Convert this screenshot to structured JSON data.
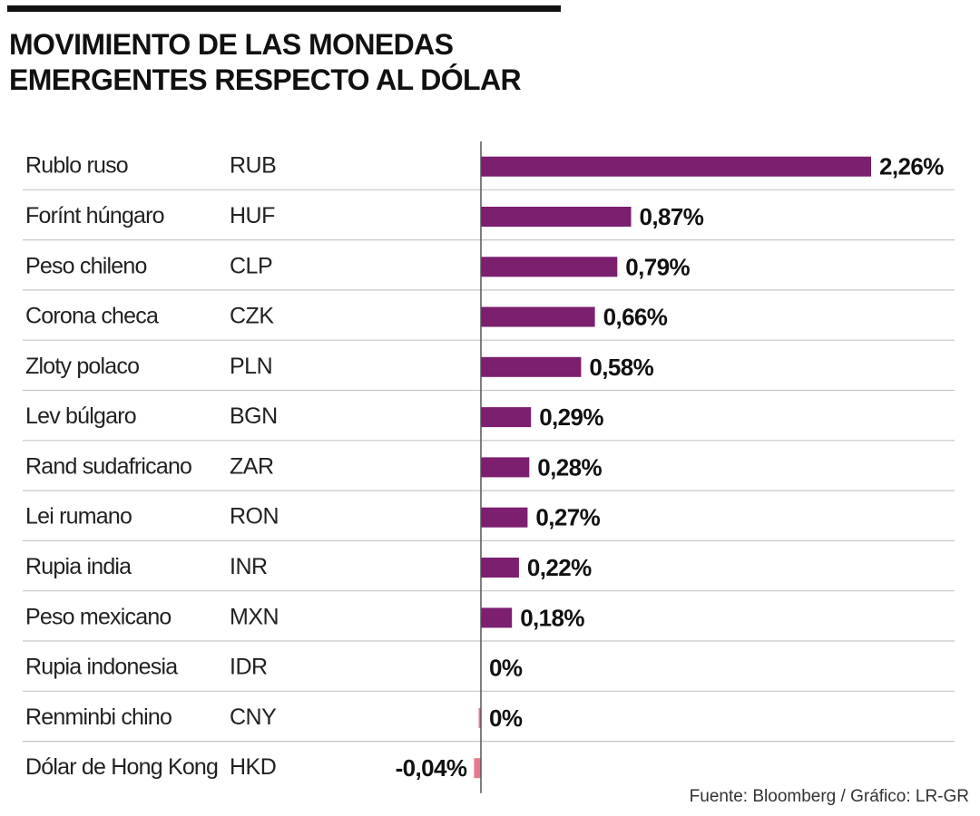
{
  "title_lines": [
    "MOVIMIENTO DE LAS MONEDAS",
    "EMERGENTES RESPECTO AL DÓLAR"
  ],
  "source": "Fuente: Bloomberg / Gráfico: LR-GR",
  "colors": {
    "positive": "#7b1f6e",
    "negative": "#e8788e",
    "gridline": "#c8c8c8",
    "zero_axis": "#555555",
    "rule": "#111111"
  },
  "chart_data": {
    "type": "bar",
    "orientation": "horizontal",
    "title": "MOVIMIENTO DE LAS MONEDAS EMERGENTES RESPECTO AL DÓLAR",
    "categories": [
      "Rublo ruso",
      "Forínt húngaro",
      "Peso chileno",
      "Corona checa",
      "Zloty polaco",
      "Lev búlgaro",
      "Rand sudafricano",
      "Lei rumano",
      "Rupia india",
      "Peso mexicano",
      "Rupia indonesia",
      "Renminbi chino",
      "Dólar de Hong Kong"
    ],
    "codes": [
      "RUB",
      "HUF",
      "CLP",
      "CZK",
      "PLN",
      "BGN",
      "ZAR",
      "RON",
      "INR",
      "MXN",
      "IDR",
      "CNY",
      "HKD"
    ],
    "values": [
      2.26,
      0.87,
      0.79,
      0.66,
      0.58,
      0.29,
      0.28,
      0.27,
      0.22,
      0.18,
      0,
      -0.005,
      -0.04
    ],
    "value_labels": [
      "2,26%",
      "0,87%",
      "0,79%",
      "0,66%",
      "0,58%",
      "0,29%",
      "0,28%",
      "0,27%",
      "0,22%",
      "0,18%",
      "0%",
      "0%",
      "-0,04%"
    ],
    "unit": "%",
    "zero_line": true,
    "legend": "none"
  }
}
